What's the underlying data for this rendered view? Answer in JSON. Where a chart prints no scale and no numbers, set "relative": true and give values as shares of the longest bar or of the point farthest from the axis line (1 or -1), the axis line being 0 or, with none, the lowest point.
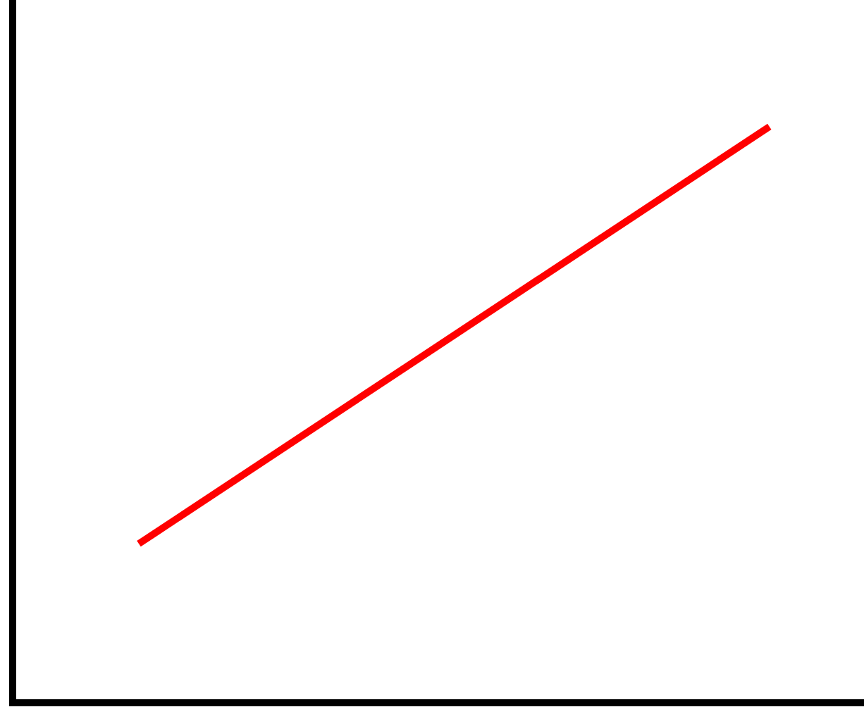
{
  "chart_data": {
    "type": "line",
    "relative": true,
    "categories": [
      null,
      null
    ],
    "series": [
      {
        "color": "#ff0000",
        "values": [
          0.276,
          1
        ]
      }
    ],
    "grid": false,
    "legend": false,
    "marker": "none",
    "line_style": "solid"
  }
}
